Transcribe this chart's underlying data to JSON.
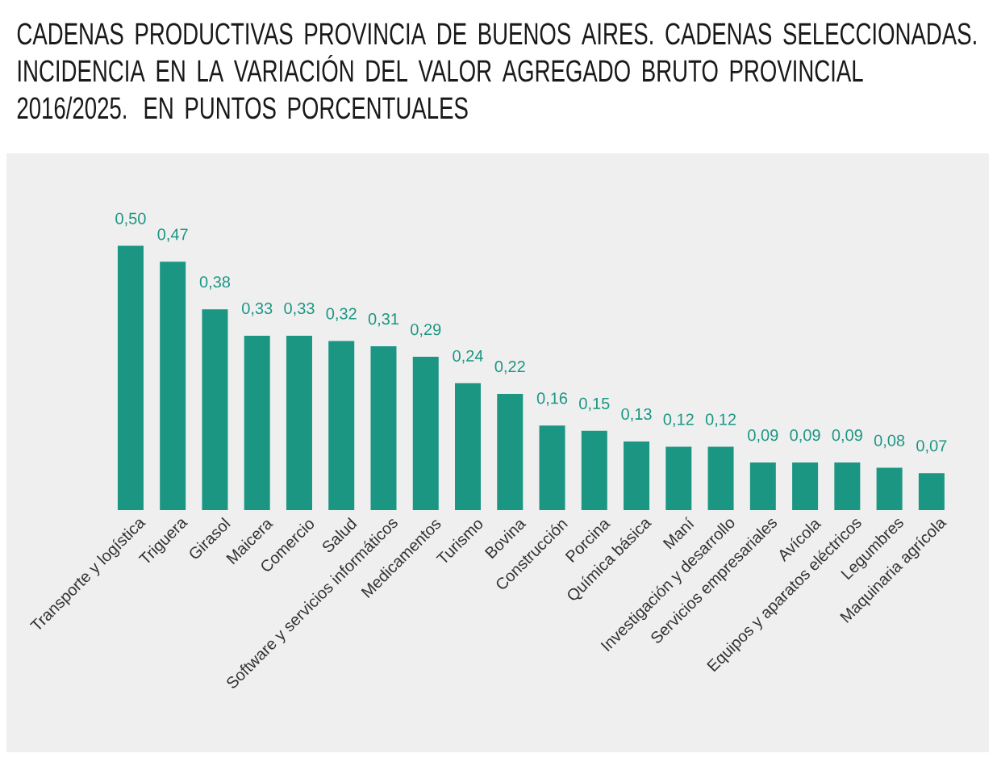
{
  "chart_data": {
    "type": "bar",
    "title": "CADENAS PRODUCTIVAS PROVINCIA DE BUENOS AIRES. CADENAS SELECCIONADAS. INCIDENCIA EN LA VARIACIÓN DEL VALOR AGREGADO BRUTO PROVINCIAL 2016/2025.  EN PUNTOS PORCENTUALES",
    "categories": [
      "Transporte y logística",
      "Triguera",
      "Girasol",
      "Maicera",
      "Comercio",
      "Salud",
      "Software y servicios informáticos",
      "Medicamentos",
      "Turismo",
      "Bovina",
      "Construcción",
      "Porcina",
      "Química básica",
      "Maní",
      "Investigación y desarrollo",
      "Servicios empresariales",
      "Avícola",
      "Equipos y aparatos eléctricos",
      "Legumbres",
      "Maquinaria agrícola"
    ],
    "values": [
      0.5,
      0.47,
      0.38,
      0.33,
      0.33,
      0.32,
      0.31,
      0.29,
      0.24,
      0.22,
      0.16,
      0.15,
      0.13,
      0.12,
      0.12,
      0.09,
      0.09,
      0.09,
      0.08,
      0.07
    ],
    "value_labels": [
      "0,50",
      "0,47",
      "0,38",
      "0,33",
      "0,33",
      "0,32",
      "0,31",
      "0,29",
      "0,24",
      "0,22",
      "0,16",
      "0,15",
      "0,13",
      "0,12",
      "0,12",
      "0,09",
      "0,09",
      "0,09",
      "0,08",
      "0,07"
    ],
    "color": "#1b9683",
    "tick_labels": "x"
  }
}
